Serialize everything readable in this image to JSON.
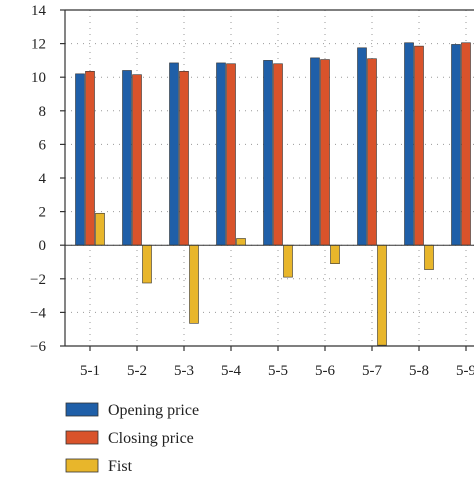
{
  "chart_data": {
    "type": "bar",
    "title": "",
    "xlabel": "",
    "ylabel": "",
    "categories": [
      "5-1",
      "5-2",
      "5-3",
      "5-4",
      "5-5",
      "5-6",
      "5-7",
      "5-8",
      "5-9"
    ],
    "ylim": [
      -6,
      14
    ],
    "yticks": [
      -6,
      -4,
      -2,
      0,
      2,
      4,
      6,
      8,
      10,
      12,
      14
    ],
    "grid": "dotted vertical and horizontal",
    "legend_position": "bottom-left, below plot",
    "series": [
      {
        "name": "Opening price",
        "color": "#1f5fa8",
        "values": [
          10.2,
          10.4,
          10.85,
          10.85,
          11.0,
          11.15,
          11.75,
          12.05,
          11.95
        ]
      },
      {
        "name": "Closing price",
        "color": "#d9532b",
        "values": [
          10.35,
          10.15,
          10.35,
          10.8,
          10.8,
          11.05,
          11.1,
          11.85,
          12.05
        ]
      },
      {
        "name": "Fist",
        "color": "#e8b62b",
        "values": [
          1.9,
          -2.25,
          -4.65,
          0.4,
          -1.9,
          -1.1,
          -5.95,
          -1.45,
          null
        ]
      }
    ]
  }
}
